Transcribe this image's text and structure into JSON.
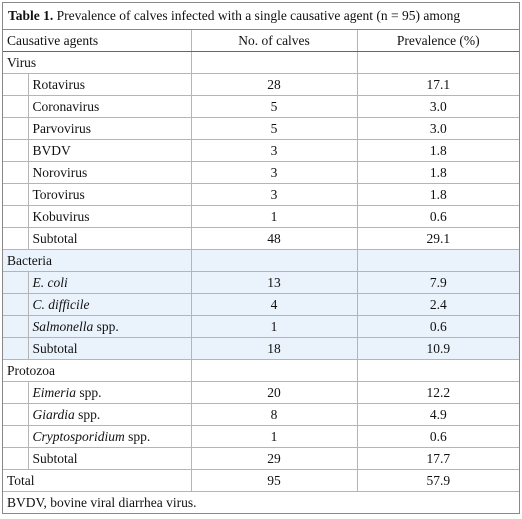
{
  "caption": {
    "label": "Table 1.",
    "text": " Prevalence of calves infected with a single causative agent (n = 95) among"
  },
  "table": {
    "header": [
      "Causative agents",
      "No. of calves",
      "Prevalence (%)"
    ],
    "groups": [
      {
        "name": "Virus",
        "rows": [
          {
            "name": "Rotavirus",
            "count": "28",
            "prevalence": "17.1"
          },
          {
            "name": "Coronavirus",
            "count": "5",
            "prevalence": "3.0"
          },
          {
            "name": "Parvovirus",
            "count": "5",
            "prevalence": "3.0"
          },
          {
            "name": "BVDV",
            "count": "3",
            "prevalence": "1.8"
          },
          {
            "name": "Norovirus",
            "count": "3",
            "prevalence": "1.8"
          },
          {
            "name": "Torovirus",
            "count": "3",
            "prevalence": "1.8"
          },
          {
            "name": "Kobuvirus",
            "count": "1",
            "prevalence": "0.6"
          },
          {
            "name": "Subtotal",
            "count": "48",
            "prevalence": "29.1"
          }
        ]
      },
      {
        "name": "Bacteria",
        "shaded": true,
        "rows": [
          {
            "name": "E. coli",
            "italic": true,
            "count": "13",
            "prevalence": "7.9"
          },
          {
            "name": "C. difficile",
            "italic": true,
            "count": "4",
            "prevalence": "2.4"
          },
          {
            "name": "Salmonella",
            "italic": true,
            "suffix": " spp.",
            "count": "1",
            "prevalence": "0.6"
          },
          {
            "name": "Subtotal",
            "count": "18",
            "prevalence": "10.9"
          }
        ]
      },
      {
        "name": "Protozoa",
        "rows": [
          {
            "name": "Eimeria",
            "italic": true,
            "suffix": " spp.",
            "count": "20",
            "prevalence": "12.2"
          },
          {
            "name": "Giardia",
            "italic": true,
            "suffix": " spp.",
            "count": "8",
            "prevalence": "4.9"
          },
          {
            "name": "Cryptosporidium",
            "italic": true,
            "suffix": " spp.",
            "count": "1",
            "prevalence": "0.6"
          },
          {
            "name": "Subtotal",
            "count": "29",
            "prevalence": "17.7"
          }
        ]
      }
    ],
    "total": {
      "name": "Total",
      "count": "95",
      "prevalence": "57.9"
    }
  },
  "footnote": "BVDV, bovine viral diarrhea virus."
}
